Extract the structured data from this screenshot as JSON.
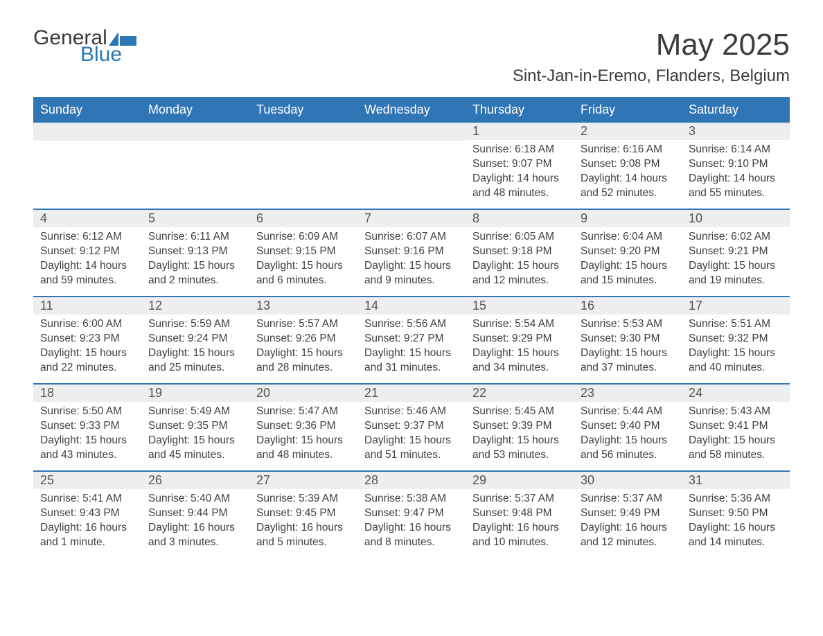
{
  "brand": {
    "general": "General",
    "blue": "Blue"
  },
  "title": "May 2025",
  "location": "Sint-Jan-in-Eremo, Flanders, Belgium",
  "colors": {
    "header_bg": "#3075b5",
    "header_text": "#ffffff",
    "daynum_bg": "#edeeef",
    "body_text": "#404040",
    "rule": "#3075b5",
    "logo_blue": "#2b77b5"
  },
  "weekdays": [
    "Sunday",
    "Monday",
    "Tuesday",
    "Wednesday",
    "Thursday",
    "Friday",
    "Saturday"
  ],
  "weeks": [
    [
      {
        "n": "",
        "sunrise": "",
        "sunset": "",
        "daylight": ""
      },
      {
        "n": "",
        "sunrise": "",
        "sunset": "",
        "daylight": ""
      },
      {
        "n": "",
        "sunrise": "",
        "sunset": "",
        "daylight": ""
      },
      {
        "n": "",
        "sunrise": "",
        "sunset": "",
        "daylight": ""
      },
      {
        "n": "1",
        "sunrise": "Sunrise: 6:18 AM",
        "sunset": "Sunset: 9:07 PM",
        "daylight": "Daylight: 14 hours and 48 minutes."
      },
      {
        "n": "2",
        "sunrise": "Sunrise: 6:16 AM",
        "sunset": "Sunset: 9:08 PM",
        "daylight": "Daylight: 14 hours and 52 minutes."
      },
      {
        "n": "3",
        "sunrise": "Sunrise: 6:14 AM",
        "sunset": "Sunset: 9:10 PM",
        "daylight": "Daylight: 14 hours and 55 minutes."
      }
    ],
    [
      {
        "n": "4",
        "sunrise": "Sunrise: 6:12 AM",
        "sunset": "Sunset: 9:12 PM",
        "daylight": "Daylight: 14 hours and 59 minutes."
      },
      {
        "n": "5",
        "sunrise": "Sunrise: 6:11 AM",
        "sunset": "Sunset: 9:13 PM",
        "daylight": "Daylight: 15 hours and 2 minutes."
      },
      {
        "n": "6",
        "sunrise": "Sunrise: 6:09 AM",
        "sunset": "Sunset: 9:15 PM",
        "daylight": "Daylight: 15 hours and 6 minutes."
      },
      {
        "n": "7",
        "sunrise": "Sunrise: 6:07 AM",
        "sunset": "Sunset: 9:16 PM",
        "daylight": "Daylight: 15 hours and 9 minutes."
      },
      {
        "n": "8",
        "sunrise": "Sunrise: 6:05 AM",
        "sunset": "Sunset: 9:18 PM",
        "daylight": "Daylight: 15 hours and 12 minutes."
      },
      {
        "n": "9",
        "sunrise": "Sunrise: 6:04 AM",
        "sunset": "Sunset: 9:20 PM",
        "daylight": "Daylight: 15 hours and 15 minutes."
      },
      {
        "n": "10",
        "sunrise": "Sunrise: 6:02 AM",
        "sunset": "Sunset: 9:21 PM",
        "daylight": "Daylight: 15 hours and 19 minutes."
      }
    ],
    [
      {
        "n": "11",
        "sunrise": "Sunrise: 6:00 AM",
        "sunset": "Sunset: 9:23 PM",
        "daylight": "Daylight: 15 hours and 22 minutes."
      },
      {
        "n": "12",
        "sunrise": "Sunrise: 5:59 AM",
        "sunset": "Sunset: 9:24 PM",
        "daylight": "Daylight: 15 hours and 25 minutes."
      },
      {
        "n": "13",
        "sunrise": "Sunrise: 5:57 AM",
        "sunset": "Sunset: 9:26 PM",
        "daylight": "Daylight: 15 hours and 28 minutes."
      },
      {
        "n": "14",
        "sunrise": "Sunrise: 5:56 AM",
        "sunset": "Sunset: 9:27 PM",
        "daylight": "Daylight: 15 hours and 31 minutes."
      },
      {
        "n": "15",
        "sunrise": "Sunrise: 5:54 AM",
        "sunset": "Sunset: 9:29 PM",
        "daylight": "Daylight: 15 hours and 34 minutes."
      },
      {
        "n": "16",
        "sunrise": "Sunrise: 5:53 AM",
        "sunset": "Sunset: 9:30 PM",
        "daylight": "Daylight: 15 hours and 37 minutes."
      },
      {
        "n": "17",
        "sunrise": "Sunrise: 5:51 AM",
        "sunset": "Sunset: 9:32 PM",
        "daylight": "Daylight: 15 hours and 40 minutes."
      }
    ],
    [
      {
        "n": "18",
        "sunrise": "Sunrise: 5:50 AM",
        "sunset": "Sunset: 9:33 PM",
        "daylight": "Daylight: 15 hours and 43 minutes."
      },
      {
        "n": "19",
        "sunrise": "Sunrise: 5:49 AM",
        "sunset": "Sunset: 9:35 PM",
        "daylight": "Daylight: 15 hours and 45 minutes."
      },
      {
        "n": "20",
        "sunrise": "Sunrise: 5:47 AM",
        "sunset": "Sunset: 9:36 PM",
        "daylight": "Daylight: 15 hours and 48 minutes."
      },
      {
        "n": "21",
        "sunrise": "Sunrise: 5:46 AM",
        "sunset": "Sunset: 9:37 PM",
        "daylight": "Daylight: 15 hours and 51 minutes."
      },
      {
        "n": "22",
        "sunrise": "Sunrise: 5:45 AM",
        "sunset": "Sunset: 9:39 PM",
        "daylight": "Daylight: 15 hours and 53 minutes."
      },
      {
        "n": "23",
        "sunrise": "Sunrise: 5:44 AM",
        "sunset": "Sunset: 9:40 PM",
        "daylight": "Daylight: 15 hours and 56 minutes."
      },
      {
        "n": "24",
        "sunrise": "Sunrise: 5:43 AM",
        "sunset": "Sunset: 9:41 PM",
        "daylight": "Daylight: 15 hours and 58 minutes."
      }
    ],
    [
      {
        "n": "25",
        "sunrise": "Sunrise: 5:41 AM",
        "sunset": "Sunset: 9:43 PM",
        "daylight": "Daylight: 16 hours and 1 minute."
      },
      {
        "n": "26",
        "sunrise": "Sunrise: 5:40 AM",
        "sunset": "Sunset: 9:44 PM",
        "daylight": "Daylight: 16 hours and 3 minutes."
      },
      {
        "n": "27",
        "sunrise": "Sunrise: 5:39 AM",
        "sunset": "Sunset: 9:45 PM",
        "daylight": "Daylight: 16 hours and 5 minutes."
      },
      {
        "n": "28",
        "sunrise": "Sunrise: 5:38 AM",
        "sunset": "Sunset: 9:47 PM",
        "daylight": "Daylight: 16 hours and 8 minutes."
      },
      {
        "n": "29",
        "sunrise": "Sunrise: 5:37 AM",
        "sunset": "Sunset: 9:48 PM",
        "daylight": "Daylight: 16 hours and 10 minutes."
      },
      {
        "n": "30",
        "sunrise": "Sunrise: 5:37 AM",
        "sunset": "Sunset: 9:49 PM",
        "daylight": "Daylight: 16 hours and 12 minutes."
      },
      {
        "n": "31",
        "sunrise": "Sunrise: 5:36 AM",
        "sunset": "Sunset: 9:50 PM",
        "daylight": "Daylight: 16 hours and 14 minutes."
      }
    ]
  ]
}
